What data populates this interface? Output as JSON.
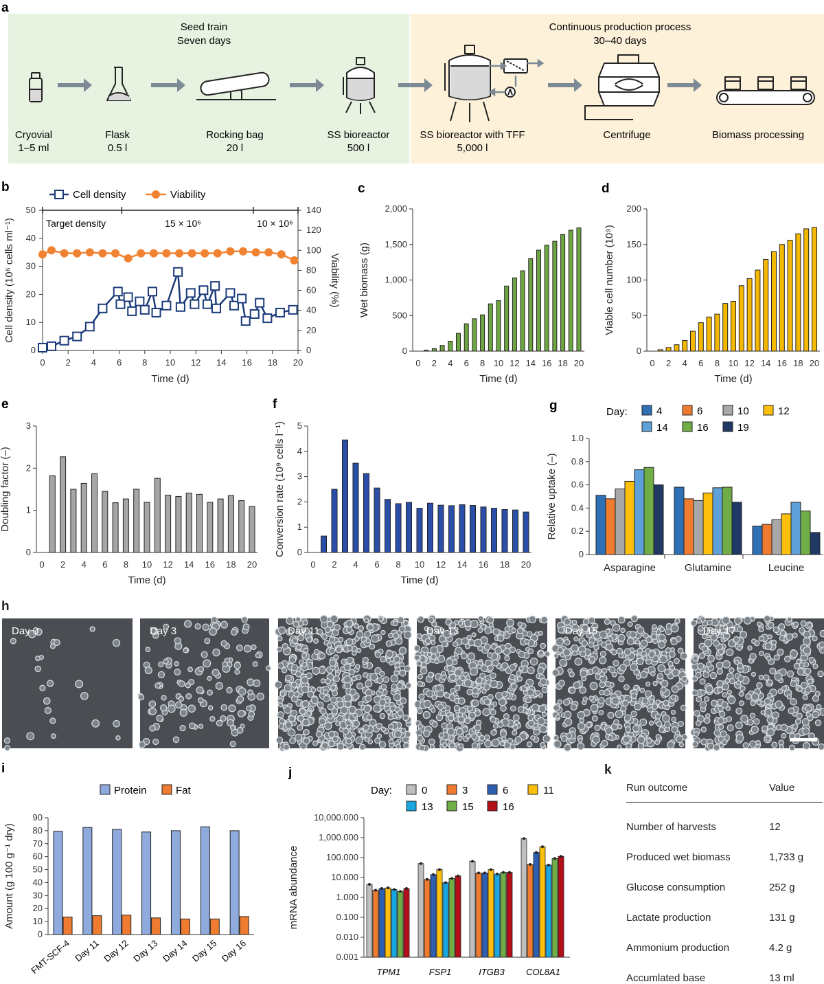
{
  "panel_letters": [
    "a",
    "b",
    "c",
    "d",
    "e",
    "f",
    "g",
    "h",
    "i",
    "j",
    "k"
  ],
  "process": {
    "seed_title_1": "Seed train",
    "seed_title_2": "Seven days",
    "cont_title_1": "Continuous production process",
    "cont_title_2": "30–40 days",
    "colors": {
      "seed_bg": "#e7f2e1",
      "cont_bg": "#fdf1d9",
      "arrow": "#7c8a96",
      "icon": "#222222",
      "fill": "#d9d9d9"
    },
    "steps": [
      {
        "name": "Cryovial",
        "vol": "1–5 ml"
      },
      {
        "name": "Flask",
        "vol": "0.5 l"
      },
      {
        "name": "Rocking bag",
        "vol": "20 l"
      },
      {
        "name": "SS bioreactor",
        "vol": "500 l"
      },
      {
        "name": "SS bioreactor with TFF",
        "vol": "5,000 l"
      },
      {
        "name": "Centrifuge",
        "vol": ""
      },
      {
        "name": "Biomass processing",
        "vol": ""
      }
    ]
  },
  "chart_data": [
    {
      "id": "b",
      "type": "line",
      "x_cd": [
        0,
        0.7,
        1.7,
        2.7,
        3.7,
        4.7,
        5.9,
        6.1,
        6.7,
        7.0,
        7.6,
        8.0,
        8.6,
        8.9,
        9.7,
        10.6,
        10.8,
        11.6,
        11.9,
        12.6,
        12.9,
        13.5,
        13.6,
        14.7,
        15.0,
        15.6,
        15.9,
        16.6,
        17.0,
        17.6,
        18.6,
        19.6
      ],
      "y_cd": [
        1,
        1.5,
        3.5,
        5,
        8.5,
        15,
        21,
        16.5,
        19,
        14,
        17.5,
        14.5,
        21,
        13.5,
        16,
        28,
        15.5,
        20.5,
        16.5,
        21.5,
        16.5,
        23,
        15,
        20.5,
        16,
        18.5,
        10.5,
        13,
        17,
        11.5,
        13.5,
        14.5
      ],
      "x_via": [
        0,
        0.7,
        1.7,
        2.7,
        3.7,
        4.7,
        5.7,
        6.7,
        7.7,
        8.7,
        9.7,
        10.7,
        11.7,
        12.7,
        13.7,
        14.7,
        15.7,
        16.7,
        17.7,
        18.7,
        19.7
      ],
      "y_via": [
        96,
        100,
        97,
        97,
        98,
        97,
        97,
        92,
        97,
        97,
        97,
        97,
        97,
        97,
        97,
        99,
        99,
        98,
        98,
        96,
        90
      ],
      "title": "",
      "legend": [
        "Cell density",
        "Viability"
      ],
      "xlabel": "Time (d)",
      "ylabel_left": "Cell density (10⁶ cells ml⁻¹)",
      "ylabel_right": "Viability (%)",
      "xlim": [
        0,
        20
      ],
      "ylim_left": [
        0,
        50
      ],
      "ylim_right": [
        0,
        140
      ],
      "xticks": [
        0,
        2,
        4,
        6,
        8,
        10,
        12,
        14,
        16,
        18,
        20
      ],
      "yticks_left": [
        0,
        10,
        20,
        30,
        40,
        50
      ],
      "yticks_right": [
        0,
        20,
        40,
        60,
        80,
        100,
        120,
        140
      ],
      "target_label": "Target density",
      "target_1": "15 × 10⁶",
      "target_2": "10 × 10⁶",
      "target_marks": [
        0,
        6.2,
        16.5,
        20
      ],
      "colors": {
        "cd": "#1b3a7a",
        "via": "#f08232"
      }
    },
    {
      "id": "c",
      "type": "bar",
      "categories": [
        1,
        2,
        3,
        4,
        5,
        6,
        7,
        8,
        9,
        10,
        11,
        12,
        13,
        14,
        15,
        16,
        17,
        18,
        19,
        20
      ],
      "values": [
        15,
        35,
        80,
        140,
        250,
        385,
        455,
        510,
        665,
        710,
        915,
        1030,
        1130,
        1300,
        1420,
        1490,
        1545,
        1640,
        1700,
        1733
      ],
      "xlabel": "Time (d)",
      "ylabel": "Wet biomass (g)",
      "ylim": [
        0,
        2000
      ],
      "yticks": [
        0,
        500,
        1000,
        1500,
        2000
      ],
      "yticklabels": [
        "0",
        "500",
        "1,000",
        "1,500",
        "2,000"
      ],
      "xticks": [
        0,
        2,
        4,
        6,
        8,
        10,
        12,
        14,
        16,
        18,
        20
      ],
      "color": "#6ea542"
    },
    {
      "id": "d",
      "type": "bar",
      "categories": [
        1,
        2,
        3,
        4,
        5,
        6,
        7,
        8,
        9,
        10,
        11,
        12,
        13,
        14,
        15,
        16,
        17,
        18,
        19,
        20
      ],
      "values": [
        2,
        5,
        9,
        15,
        28,
        40,
        48,
        52,
        67,
        70,
        92,
        102,
        114,
        129,
        140,
        150,
        156,
        165,
        172,
        174
      ],
      "xlabel": "Time (d)",
      "ylabel": "Viable cell number (10⁹)",
      "ylim": [
        0,
        200
      ],
      "yticks": [
        0,
        50,
        100,
        150,
        200
      ],
      "yticklabels": [
        "0",
        "50",
        "100",
        "150",
        "200"
      ],
      "xticks": [
        0,
        2,
        4,
        6,
        8,
        10,
        12,
        14,
        16,
        18,
        20
      ],
      "color": "#f5b800"
    },
    {
      "id": "e",
      "type": "bar",
      "categories": [
        1,
        2,
        3,
        4,
        5,
        6,
        7,
        8,
        9,
        10,
        11,
        12,
        13,
        14,
        15,
        16,
        17,
        18,
        19,
        20
      ],
      "values": [
        1.82,
        2.27,
        1.5,
        1.64,
        1.87,
        1.45,
        1.18,
        1.27,
        1.5,
        1.19,
        1.76,
        1.36,
        1.33,
        1.41,
        1.38,
        1.19,
        1.27,
        1.35,
        1.23,
        1.09
      ],
      "xlabel": "Time (d)",
      "ylabel": "Doubling factor (–)",
      "ylim": [
        0,
        3
      ],
      "yticks": [
        0,
        1,
        2,
        3
      ],
      "yticklabels": [
        "0",
        "1",
        "2",
        "3"
      ],
      "xticks": [
        0,
        2,
        4,
        6,
        8,
        10,
        12,
        14,
        16,
        18,
        20
      ],
      "color": "#a6a6a6"
    },
    {
      "id": "f",
      "type": "bar",
      "categories": [
        1,
        2,
        3,
        4,
        5,
        6,
        7,
        8,
        9,
        10,
        11,
        12,
        13,
        14,
        15,
        16,
        17,
        18,
        19,
        20
      ],
      "values": [
        0.65,
        2.5,
        4.45,
        3.53,
        3.12,
        2.55,
        2.1,
        1.93,
        1.98,
        1.75,
        1.95,
        1.87,
        1.85,
        1.89,
        1.86,
        1.8,
        1.75,
        1.7,
        1.68,
        1.6
      ],
      "xlabel": "Time (d)",
      "ylabel": "Conversion rate (10⁹ cells l⁻¹)",
      "ylim": [
        0,
        5
      ],
      "yticks": [
        0,
        1,
        2,
        3,
        4,
        5
      ],
      "yticklabels": [
        "0",
        "1",
        "2",
        "3",
        "4",
        "5"
      ],
      "xticks": [
        0,
        2,
        4,
        6,
        8,
        10,
        12,
        14,
        16,
        18,
        20
      ],
      "color": "#2b4fa8"
    },
    {
      "id": "g",
      "type": "bar",
      "legend_title": "Day:",
      "categories": [
        "Asparagine",
        "Glutamine",
        "Leucine"
      ],
      "series": [
        {
          "name": "4",
          "values": [
            0.51,
            0.58,
            0.245
          ],
          "color": "#2e6fb6"
        },
        {
          "name": "6",
          "values": [
            0.48,
            0.48,
            0.26
          ],
          "color": "#ee7b30"
        },
        {
          "name": "10",
          "values": [
            0.565,
            0.465,
            0.3
          ],
          "color": "#a8a8a8"
        },
        {
          "name": "12",
          "values": [
            0.63,
            0.53,
            0.35
          ],
          "color": "#fbbf0c"
        },
        {
          "name": "14",
          "values": [
            0.73,
            0.575,
            0.45
          ],
          "color": "#5ea1d8"
        },
        {
          "name": "16",
          "values": [
            0.75,
            0.58,
            0.375
          ],
          "color": "#70ad47"
        },
        {
          "name": "19",
          "values": [
            0.6,
            0.45,
            0.19
          ],
          "color": "#203864"
        }
      ],
      "ylabel": "Relative uptake (–)",
      "ylim": [
        0,
        1.0
      ],
      "yticks": [
        0,
        0.2,
        0.4,
        0.6,
        0.8,
        1.0
      ],
      "yticklabels": [
        "0",
        "0.2",
        "0.4",
        "0.6",
        "0.8",
        "1.0"
      ]
    },
    {
      "id": "i",
      "type": "bar",
      "categories": [
        "FMT-SCF-4",
        "Day 11",
        "Day 12",
        "Day 13",
        "Day 14",
        "Day 15",
        "Day 16"
      ],
      "series": [
        {
          "name": "Protein",
          "values": [
            79.5,
            82.5,
            81,
            79,
            80,
            83,
            80
          ],
          "color": "#8faadc"
        },
        {
          "name": "Fat",
          "values": [
            13.5,
            14.5,
            15,
            12.8,
            12,
            12,
            13.8
          ],
          "color": "#ee7b30"
        }
      ],
      "ylabel": "Amount (g 100 g⁻¹ dry)",
      "ylim": [
        0,
        90
      ],
      "yticks": [
        0,
        10,
        20,
        30,
        40,
        50,
        60,
        70,
        80,
        90
      ],
      "yticklabels": [
        "0",
        "10",
        "20",
        "30",
        "40",
        "50",
        "60",
        "70",
        "80",
        "90"
      ]
    },
    {
      "id": "j",
      "type": "bar",
      "scale": "log",
      "legend_title": "Day:",
      "categories": [
        "TPM1",
        "FSP1",
        "ITGB3",
        "COL8A1"
      ],
      "series": [
        {
          "name": "0",
          "values": [
            4.5,
            50,
            65,
            900
          ],
          "color": "#bfbfbf"
        },
        {
          "name": "3",
          "values": [
            2.3,
            8,
            17,
            45
          ],
          "color": "#ee7b30"
        },
        {
          "name": "6",
          "values": [
            2.8,
            14,
            17,
            180
          ],
          "color": "#2e5fb0"
        },
        {
          "name": "11",
          "values": [
            3.0,
            25,
            25,
            350
          ],
          "color": "#fbbf0c"
        },
        {
          "name": "13",
          "values": [
            2.5,
            5.5,
            15,
            42
          ],
          "color": "#1aa7e0"
        },
        {
          "name": "15",
          "values": [
            2.0,
            9,
            18,
            90
          ],
          "color": "#70ad47"
        },
        {
          "name": "16",
          "values": [
            2.8,
            12,
            18,
            115
          ],
          "color": "#b30f1a"
        }
      ],
      "ylabel": "mRNA abundance",
      "yticks": [
        0.001,
        0.01,
        0.1,
        1,
        10,
        100,
        1000,
        10000
      ],
      "yticklabels": [
        "0.001",
        "0.010",
        "0.100",
        "1.000",
        "10.000",
        "100.000",
        "1,000.000",
        "10,000.000"
      ]
    }
  ],
  "micrographs": [
    {
      "label": "Day 0",
      "density": 25
    },
    {
      "label": "Day 3",
      "density": 130
    },
    {
      "label": "Day 11",
      "density": 520
    },
    {
      "label": "Day 13",
      "density": 480
    },
    {
      "label": "Day 15",
      "density": 420
    },
    {
      "label": "Day 17",
      "density": 380
    }
  ],
  "table_k": {
    "header": [
      "Run outcome",
      "Value"
    ],
    "rows": [
      [
        "Number of harvests",
        "12"
      ],
      [
        "Produced wet biomass",
        "1,733 g"
      ],
      [
        "Glucose consumption",
        "252 g"
      ],
      [
        "Lactate production",
        "131 g"
      ],
      [
        "Ammonium production",
        "4.2 g"
      ],
      [
        "Accumlated base",
        "13 ml"
      ]
    ]
  }
}
